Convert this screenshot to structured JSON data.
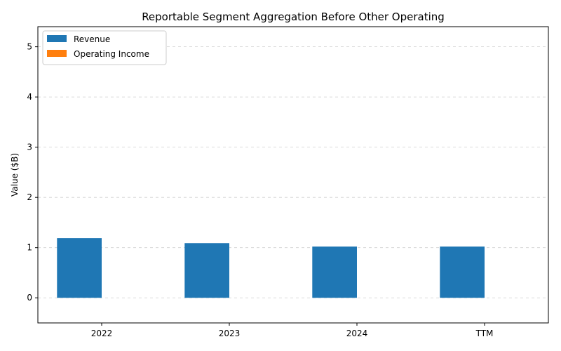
{
  "chart_data": {
    "type": "bar",
    "title": "Reportable Segment Aggregation Before Other Operating",
    "xlabel": "",
    "ylabel": "Value ($B)",
    "categories": [
      "2022",
      "2023",
      "2024",
      "TTM"
    ],
    "series": [
      {
        "name": "Revenue",
        "values": [
          1.19,
          1.09,
          1.02,
          1.02
        ],
        "color": "#1f77b4"
      },
      {
        "name": "Operating Income",
        "values": [
          0,
          0,
          0,
          0
        ],
        "color": "#ff7f0e"
      }
    ],
    "ylim": [
      -0.5,
      5.4
    ],
    "yticks": [
      0,
      1,
      2,
      3,
      4,
      5
    ],
    "grid": true,
    "legend_position": "top-left"
  }
}
